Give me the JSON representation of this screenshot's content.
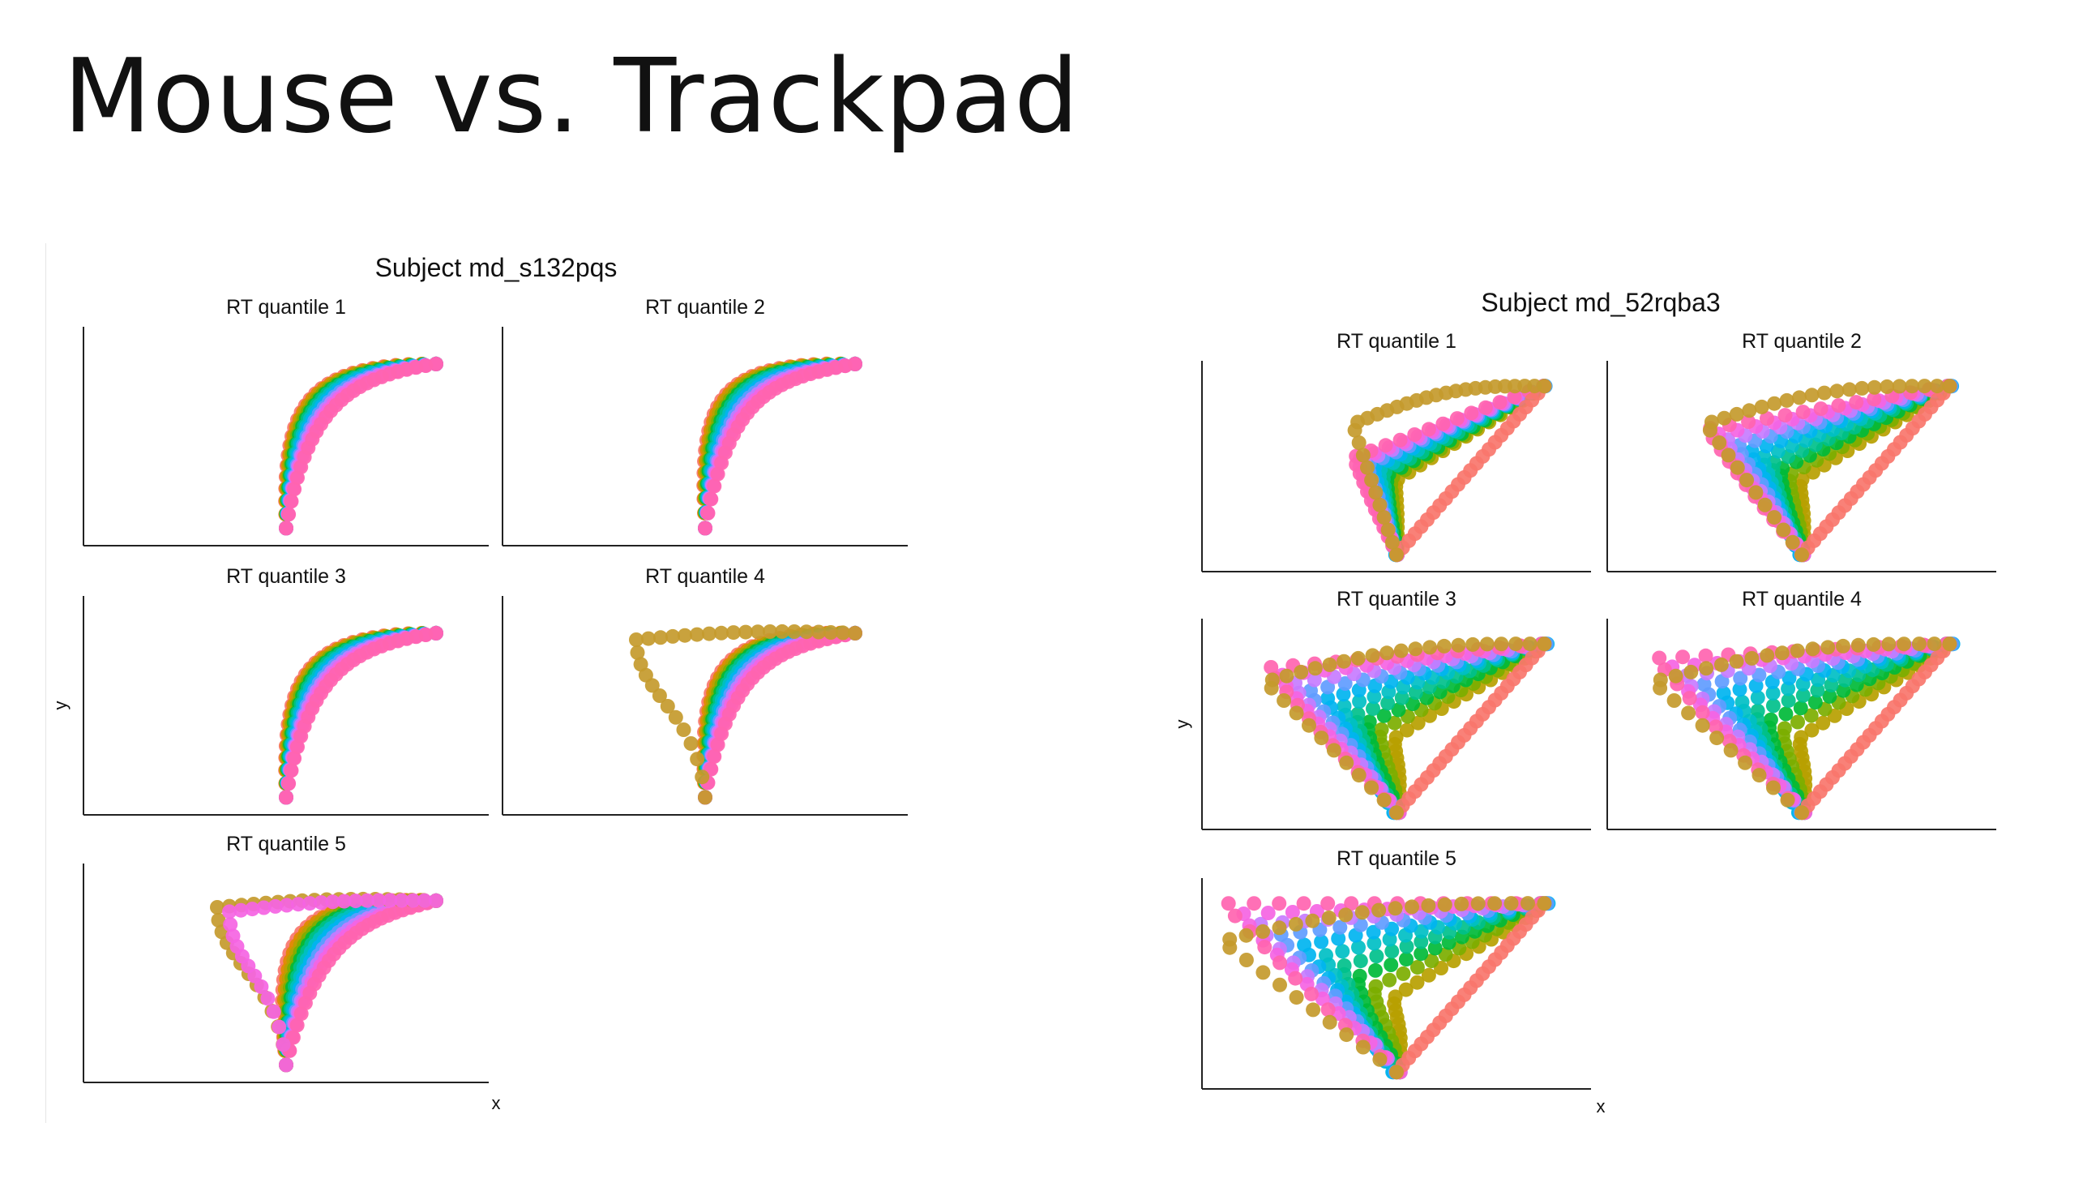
{
  "slide": {
    "title": "Mouse vs. Trackpad"
  },
  "palette": [
    "#F8766D",
    "#DE8C00",
    "#B79F00",
    "#7CAE00",
    "#00BA38",
    "#00C08B",
    "#00BFC4",
    "#00B4F0",
    "#619CFF",
    "#C77CFF",
    "#F564E3",
    "#FF64B0"
  ],
  "chart_data": [
    {
      "type": "scatter",
      "title": "Subject md_s132pqs",
      "xlabel": "x",
      "ylabel": "y",
      "facets": [
        {
          "label": "RT quantile 1",
          "style": "curve",
          "fan": 0.18,
          "bulge": 0.1,
          "loop": 0
        },
        {
          "label": "RT quantile 2",
          "style": "curve",
          "fan": 0.22,
          "bulge": 0.16,
          "loop": 0
        },
        {
          "label": "RT quantile 3",
          "style": "curve",
          "fan": 0.18,
          "bulge": 0.1,
          "loop": 0
        },
        {
          "label": "RT quantile 4",
          "style": "curve",
          "fan": 0.22,
          "bulge": 0.14,
          "loop": 1
        },
        {
          "label": "RT quantile 5",
          "style": "curve",
          "fan": 0.3,
          "bulge": 0.14,
          "loop": 2
        }
      ]
    },
    {
      "type": "scatter",
      "title": "Subject md_52rqba3",
      "xlabel": "x",
      "ylabel": "y",
      "facets": [
        {
          "label": "RT quantile 1",
          "style": "tri",
          "spread": 0.25,
          "loop": 1
        },
        {
          "label": "RT quantile 2",
          "style": "tri",
          "spread": 0.55,
          "loop": 1
        },
        {
          "label": "RT quantile 3",
          "style": "tri",
          "spread": 0.75,
          "loop": 1
        },
        {
          "label": "RT quantile 4",
          "style": "tri",
          "spread": 0.85,
          "loop": 1
        },
        {
          "label": "RT quantile 5",
          "style": "tri",
          "spread": 1.0,
          "loop": 1
        }
      ]
    }
  ]
}
